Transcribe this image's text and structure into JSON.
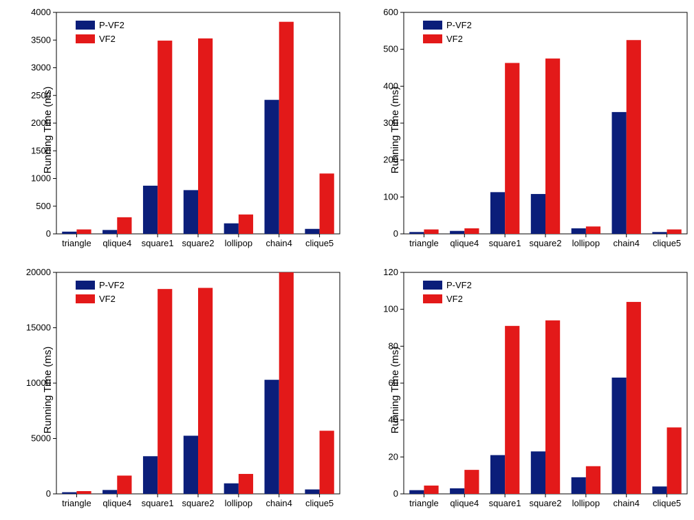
{
  "global": {
    "ylabel": "Running Time (ms)",
    "categories": [
      "triangle",
      "qlique4",
      "square1",
      "square2",
      "lollipop",
      "chain4",
      "clique5"
    ],
    "series_names": [
      "P-VF2",
      "VF2"
    ],
    "colors": {
      "pvf2": "#0b1e7a",
      "vf2": "#e31919"
    },
    "bar_width": 0.36,
    "background_color": "#ffffff",
    "axis_color": "#000000",
    "tick_fontsize": 13,
    "label_fontsize": 15,
    "legend_fontsize": 13
  },
  "charts": [
    {
      "id": "top-left",
      "ylim": [
        0,
        4000
      ],
      "ytick_step": 500,
      "pvf2": [
        40,
        70,
        870,
        790,
        190,
        2420,
        90
      ],
      "vf2": [
        80,
        300,
        3490,
        3530,
        350,
        3830,
        1090
      ]
    },
    {
      "id": "top-right",
      "ylim": [
        0,
        600
      ],
      "ytick_step": 100,
      "pvf2": [
        5,
        8,
        113,
        108,
        15,
        330,
        5
      ],
      "vf2": [
        12,
        15,
        463,
        475,
        20,
        525,
        12
      ]
    },
    {
      "id": "bottom-left",
      "ylim": [
        0,
        20000
      ],
      "ytick_step": 5000,
      "ytick_extra": [
        21000
      ],
      "pvf2": [
        150,
        350,
        3400,
        5250,
        950,
        10300,
        400
      ],
      "vf2": [
        250,
        1650,
        18500,
        18600,
        1800,
        20900,
        5700
      ]
    },
    {
      "id": "bottom-right",
      "ylim": [
        0,
        120
      ],
      "ytick_step": 20,
      "pvf2": [
        2,
        3,
        21,
        23,
        9,
        63,
        4
      ],
      "vf2": [
        4.5,
        13,
        91,
        94,
        15,
        104,
        36
      ]
    }
  ]
}
